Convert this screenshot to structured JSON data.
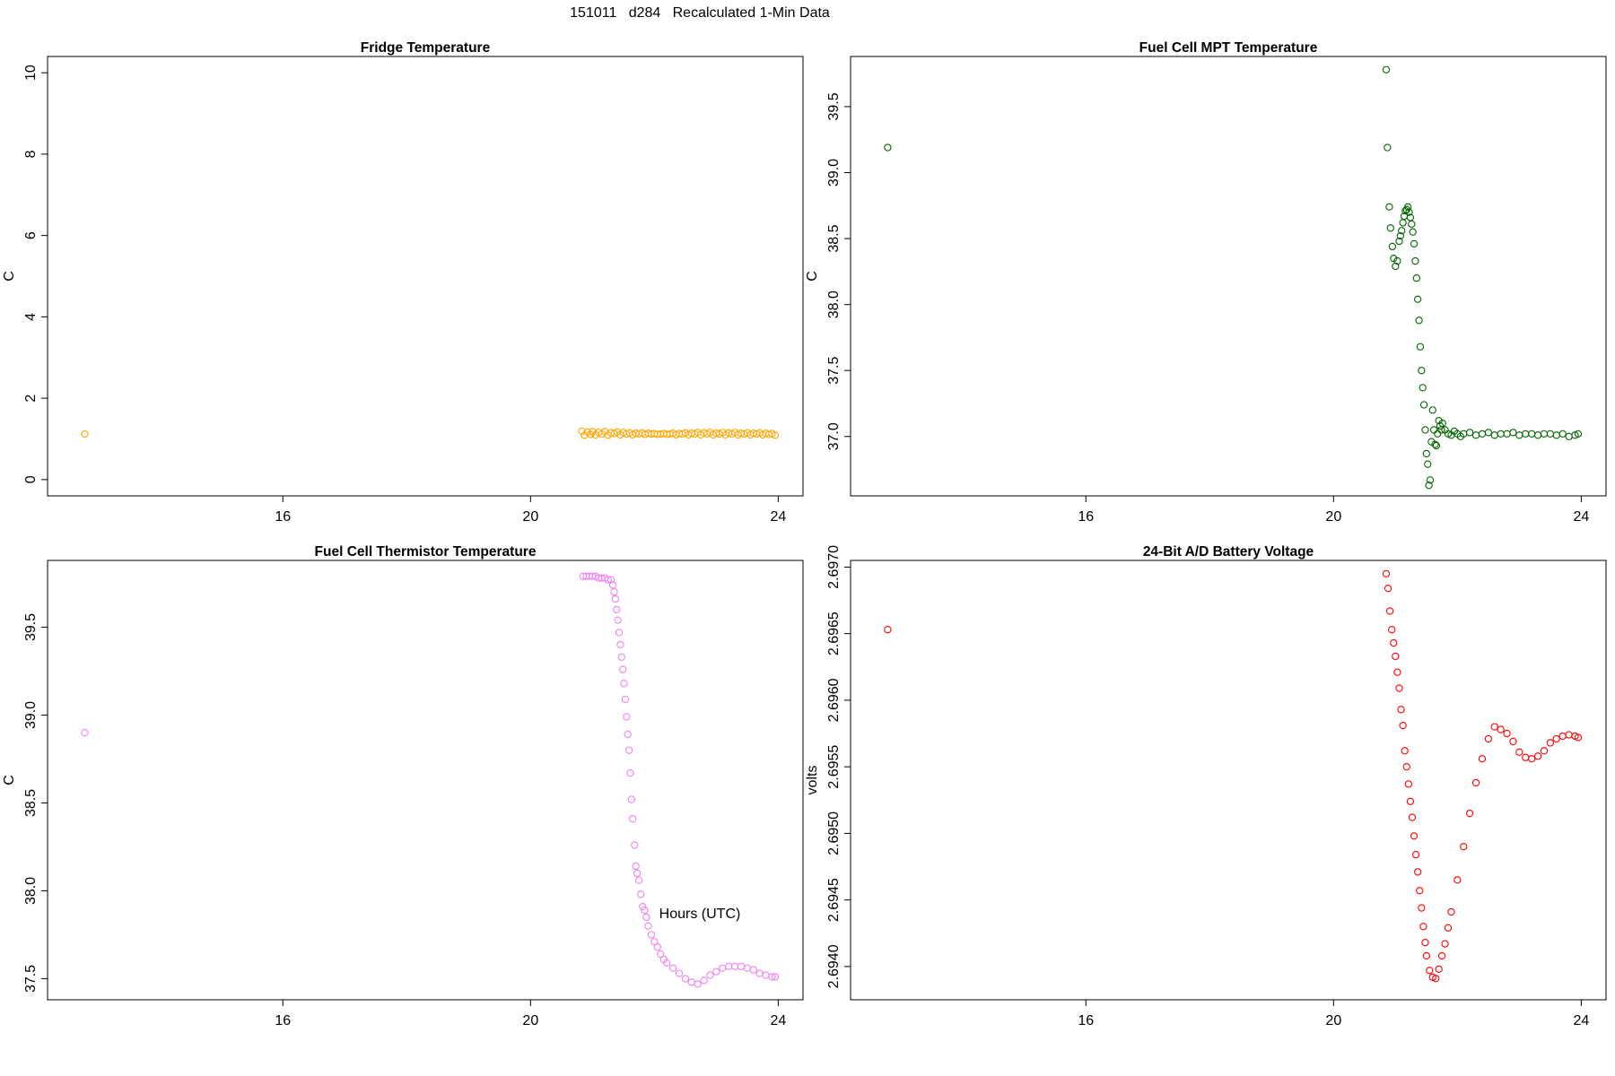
{
  "figure": {
    "title": "151011   d284   Recalculated 1-Min Data",
    "xlabel": "Hours (UTC)"
  },
  "chart_data": [
    {
      "type": "scatter",
      "title": "Fridge Temperature",
      "ylabel": "C",
      "color": "#FFA500",
      "xlim": [
        12.2,
        24.4
      ],
      "ylim": [
        -0.4,
        10.4
      ],
      "xticks": [
        16,
        20,
        24
      ],
      "yticks": [
        0,
        2,
        4,
        6,
        8,
        10
      ],
      "x_fmt": "0",
      "y_fmt": "0",
      "series": [
        {
          "x": [
            12.8,
            20.83,
            20.87,
            20.92,
            20.97,
            21.0,
            21.05,
            21.1,
            21.15,
            21.2,
            21.25,
            21.3,
            21.35,
            21.4,
            21.45,
            21.5,
            21.55,
            21.6,
            21.65,
            21.7,
            21.75,
            21.8,
            21.85,
            21.9,
            21.95,
            22.0,
            22.05,
            22.1,
            22.15,
            22.2,
            22.25,
            22.3,
            22.35,
            22.4,
            22.45,
            22.5,
            22.55,
            22.6,
            22.65,
            22.7,
            22.75,
            22.8,
            22.85,
            22.9,
            22.95,
            23.0,
            23.05,
            23.1,
            23.15,
            23.2,
            23.25,
            23.3,
            23.35,
            23.4,
            23.45,
            23.5,
            23.55,
            23.6,
            23.65,
            23.7,
            23.75,
            23.8,
            23.85,
            23.9,
            23.95
          ],
          "y": [
            1.12,
            1.19,
            1.09,
            1.17,
            1.11,
            1.18,
            1.1,
            1.16,
            1.12,
            1.18,
            1.09,
            1.15,
            1.13,
            1.17,
            1.1,
            1.16,
            1.12,
            1.15,
            1.1,
            1.14,
            1.12,
            1.15,
            1.11,
            1.14,
            1.12,
            1.13,
            1.11,
            1.12,
            1.13,
            1.11,
            1.12,
            1.14,
            1.1,
            1.13,
            1.12,
            1.15,
            1.1,
            1.14,
            1.12,
            1.16,
            1.1,
            1.15,
            1.12,
            1.16,
            1.1,
            1.14,
            1.12,
            1.16,
            1.1,
            1.15,
            1.12,
            1.16,
            1.1,
            1.14,
            1.12,
            1.15,
            1.1,
            1.14,
            1.12,
            1.15,
            1.1,
            1.14,
            1.11,
            1.13,
            1.09
          ]
        }
      ]
    },
    {
      "type": "scatter",
      "title": "Fuel Cell MPT Temperature",
      "ylabel": "C",
      "color": "#006400",
      "xlim": [
        12.2,
        24.4
      ],
      "ylim": [
        36.55,
        39.88
      ],
      "xticks": [
        16,
        20,
        24
      ],
      "yticks": [
        37.0,
        37.5,
        38.0,
        38.5,
        39.0,
        39.5
      ],
      "x_fmt": "0",
      "y_fmt": "1",
      "series": [
        {
          "x": [
            12.8,
            20.85,
            20.87,
            20.9,
            20.92,
            20.95,
            20.97,
            21.0,
            21.03,
            21.06,
            21.08,
            21.1,
            21.12,
            21.14,
            21.16,
            21.18,
            21.2,
            21.22,
            21.24,
            21.26,
            21.28,
            21.3,
            21.32,
            21.34,
            21.36,
            21.38,
            21.4,
            21.42,
            21.44,
            21.46,
            21.48,
            21.5,
            21.52,
            21.54,
            21.56,
            21.58,
            21.6,
            21.62,
            21.64,
            21.66,
            21.68,
            21.7,
            21.72,
            21.74,
            21.76,
            21.8,
            21.85,
            21.9,
            21.95,
            22.0,
            22.05,
            22.1,
            22.2,
            22.3,
            22.4,
            22.5,
            22.6,
            22.7,
            22.8,
            22.9,
            23.0,
            23.1,
            23.2,
            23.3,
            23.4,
            23.5,
            23.6,
            23.7,
            23.8,
            23.9,
            23.95
          ],
          "y": [
            39.19,
            39.78,
            39.19,
            38.74,
            38.58,
            38.44,
            38.35,
            38.29,
            38.33,
            38.48,
            38.52,
            38.56,
            38.62,
            38.67,
            38.71,
            38.72,
            38.74,
            38.7,
            38.66,
            38.61,
            38.55,
            38.46,
            38.33,
            38.2,
            38.04,
            37.88,
            37.68,
            37.5,
            37.37,
            37.24,
            37.05,
            36.87,
            36.79,
            36.63,
            36.67,
            36.96,
            37.2,
            37.05,
            36.94,
            36.93,
            37.02,
            37.12,
            37.08,
            37.05,
            37.1,
            37.05,
            37.02,
            37.01,
            37.04,
            37.02,
            37.0,
            37.02,
            37.03,
            37.01,
            37.02,
            37.03,
            37.01,
            37.02,
            37.02,
            37.03,
            37.01,
            37.02,
            37.02,
            37.01,
            37.02,
            37.02,
            37.01,
            37.02,
            37.0,
            37.01,
            37.02
          ]
        }
      ]
    },
    {
      "type": "scatter",
      "title": "Fuel Cell Thermistor Temperature",
      "ylabel": "C",
      "color": "#EE82EE",
      "xlim": [
        12.2,
        24.4
      ],
      "ylim": [
        37.38,
        39.88
      ],
      "xticks": [
        16,
        20,
        24
      ],
      "yticks": [
        37.5,
        38.0,
        38.5,
        39.0,
        39.5
      ],
      "x_fmt": "0",
      "y_fmt": "1",
      "series": [
        {
          "x": [
            12.8,
            20.85,
            20.9,
            20.95,
            21.0,
            21.05,
            21.1,
            21.15,
            21.2,
            21.25,
            21.3,
            21.33,
            21.35,
            21.37,
            21.39,
            21.41,
            21.43,
            21.45,
            21.47,
            21.49,
            21.51,
            21.53,
            21.55,
            21.57,
            21.59,
            21.61,
            21.63,
            21.65,
            21.68,
            21.7,
            21.72,
            21.75,
            21.78,
            21.81,
            21.84,
            21.87,
            21.9,
            21.95,
            22.0,
            22.05,
            22.1,
            22.15,
            22.2,
            22.3,
            22.4,
            22.5,
            22.6,
            22.7,
            22.8,
            22.9,
            23.0,
            23.1,
            23.2,
            23.3,
            23.4,
            23.5,
            23.6,
            23.7,
            23.8,
            23.9,
            23.95
          ],
          "y": [
            38.9,
            39.79,
            39.79,
            39.79,
            39.79,
            39.79,
            39.78,
            39.78,
            39.78,
            39.77,
            39.77,
            39.74,
            39.7,
            39.66,
            39.6,
            39.54,
            39.47,
            39.4,
            39.33,
            39.26,
            39.18,
            39.09,
            38.99,
            38.89,
            38.8,
            38.67,
            38.52,
            38.41,
            38.26,
            38.14,
            38.1,
            38.06,
            37.98,
            37.91,
            37.89,
            37.85,
            37.8,
            37.75,
            37.71,
            37.68,
            37.64,
            37.61,
            37.59,
            37.56,
            37.53,
            37.5,
            37.48,
            37.47,
            37.49,
            37.52,
            37.54,
            37.56,
            37.57,
            37.57,
            37.57,
            37.56,
            37.55,
            37.53,
            37.52,
            37.51,
            37.51
          ]
        }
      ]
    },
    {
      "type": "scatter",
      "title": "24-Bit A/D Battery Voltage",
      "ylabel": "volts",
      "color": "#FF0000",
      "xlim": [
        12.2,
        24.4
      ],
      "ylim": [
        2.69375,
        2.69705
      ],
      "xticks": [
        16,
        20,
        24
      ],
      "yticks": [
        2.694,
        2.6945,
        2.695,
        2.6955,
        2.696,
        2.6965,
        2.697
      ],
      "x_fmt": "0",
      "y_fmt": "4",
      "series": [
        {
          "x": [
            12.8,
            20.85,
            20.88,
            20.91,
            20.94,
            20.97,
            21.0,
            21.03,
            21.06,
            21.09,
            21.12,
            21.15,
            21.18,
            21.21,
            21.24,
            21.27,
            21.3,
            21.33,
            21.36,
            21.39,
            21.42,
            21.45,
            21.48,
            21.5,
            21.55,
            21.6,
            21.65,
            21.7,
            21.75,
            21.8,
            21.85,
            21.9,
            22.0,
            22.1,
            22.2,
            22.3,
            22.4,
            22.5,
            22.6,
            22.7,
            22.8,
            22.9,
            23.0,
            23.1,
            23.2,
            23.3,
            23.4,
            23.5,
            23.6,
            23.7,
            23.8,
            23.9,
            23.95
          ],
          "y": [
            2.69653,
            2.69695,
            2.69684,
            2.69667,
            2.69653,
            2.69643,
            2.69633,
            2.69621,
            2.69609,
            2.69593,
            2.69581,
            2.69562,
            2.6955,
            2.69537,
            2.69524,
            2.69512,
            2.69498,
            2.69484,
            2.69471,
            2.69457,
            2.69444,
            2.6943,
            2.69418,
            2.69408,
            2.69397,
            2.69392,
            2.69391,
            2.69398,
            2.69408,
            2.69417,
            2.69429,
            2.69441,
            2.69465,
            2.6949,
            2.69515,
            2.69538,
            2.69556,
            2.69571,
            2.6958,
            2.69578,
            2.69575,
            2.69569,
            2.69561,
            2.69557,
            2.69556,
            2.69558,
            2.69562,
            2.69568,
            2.69571,
            2.69573,
            2.69574,
            2.69573,
            2.69572
          ]
        }
      ]
    }
  ]
}
